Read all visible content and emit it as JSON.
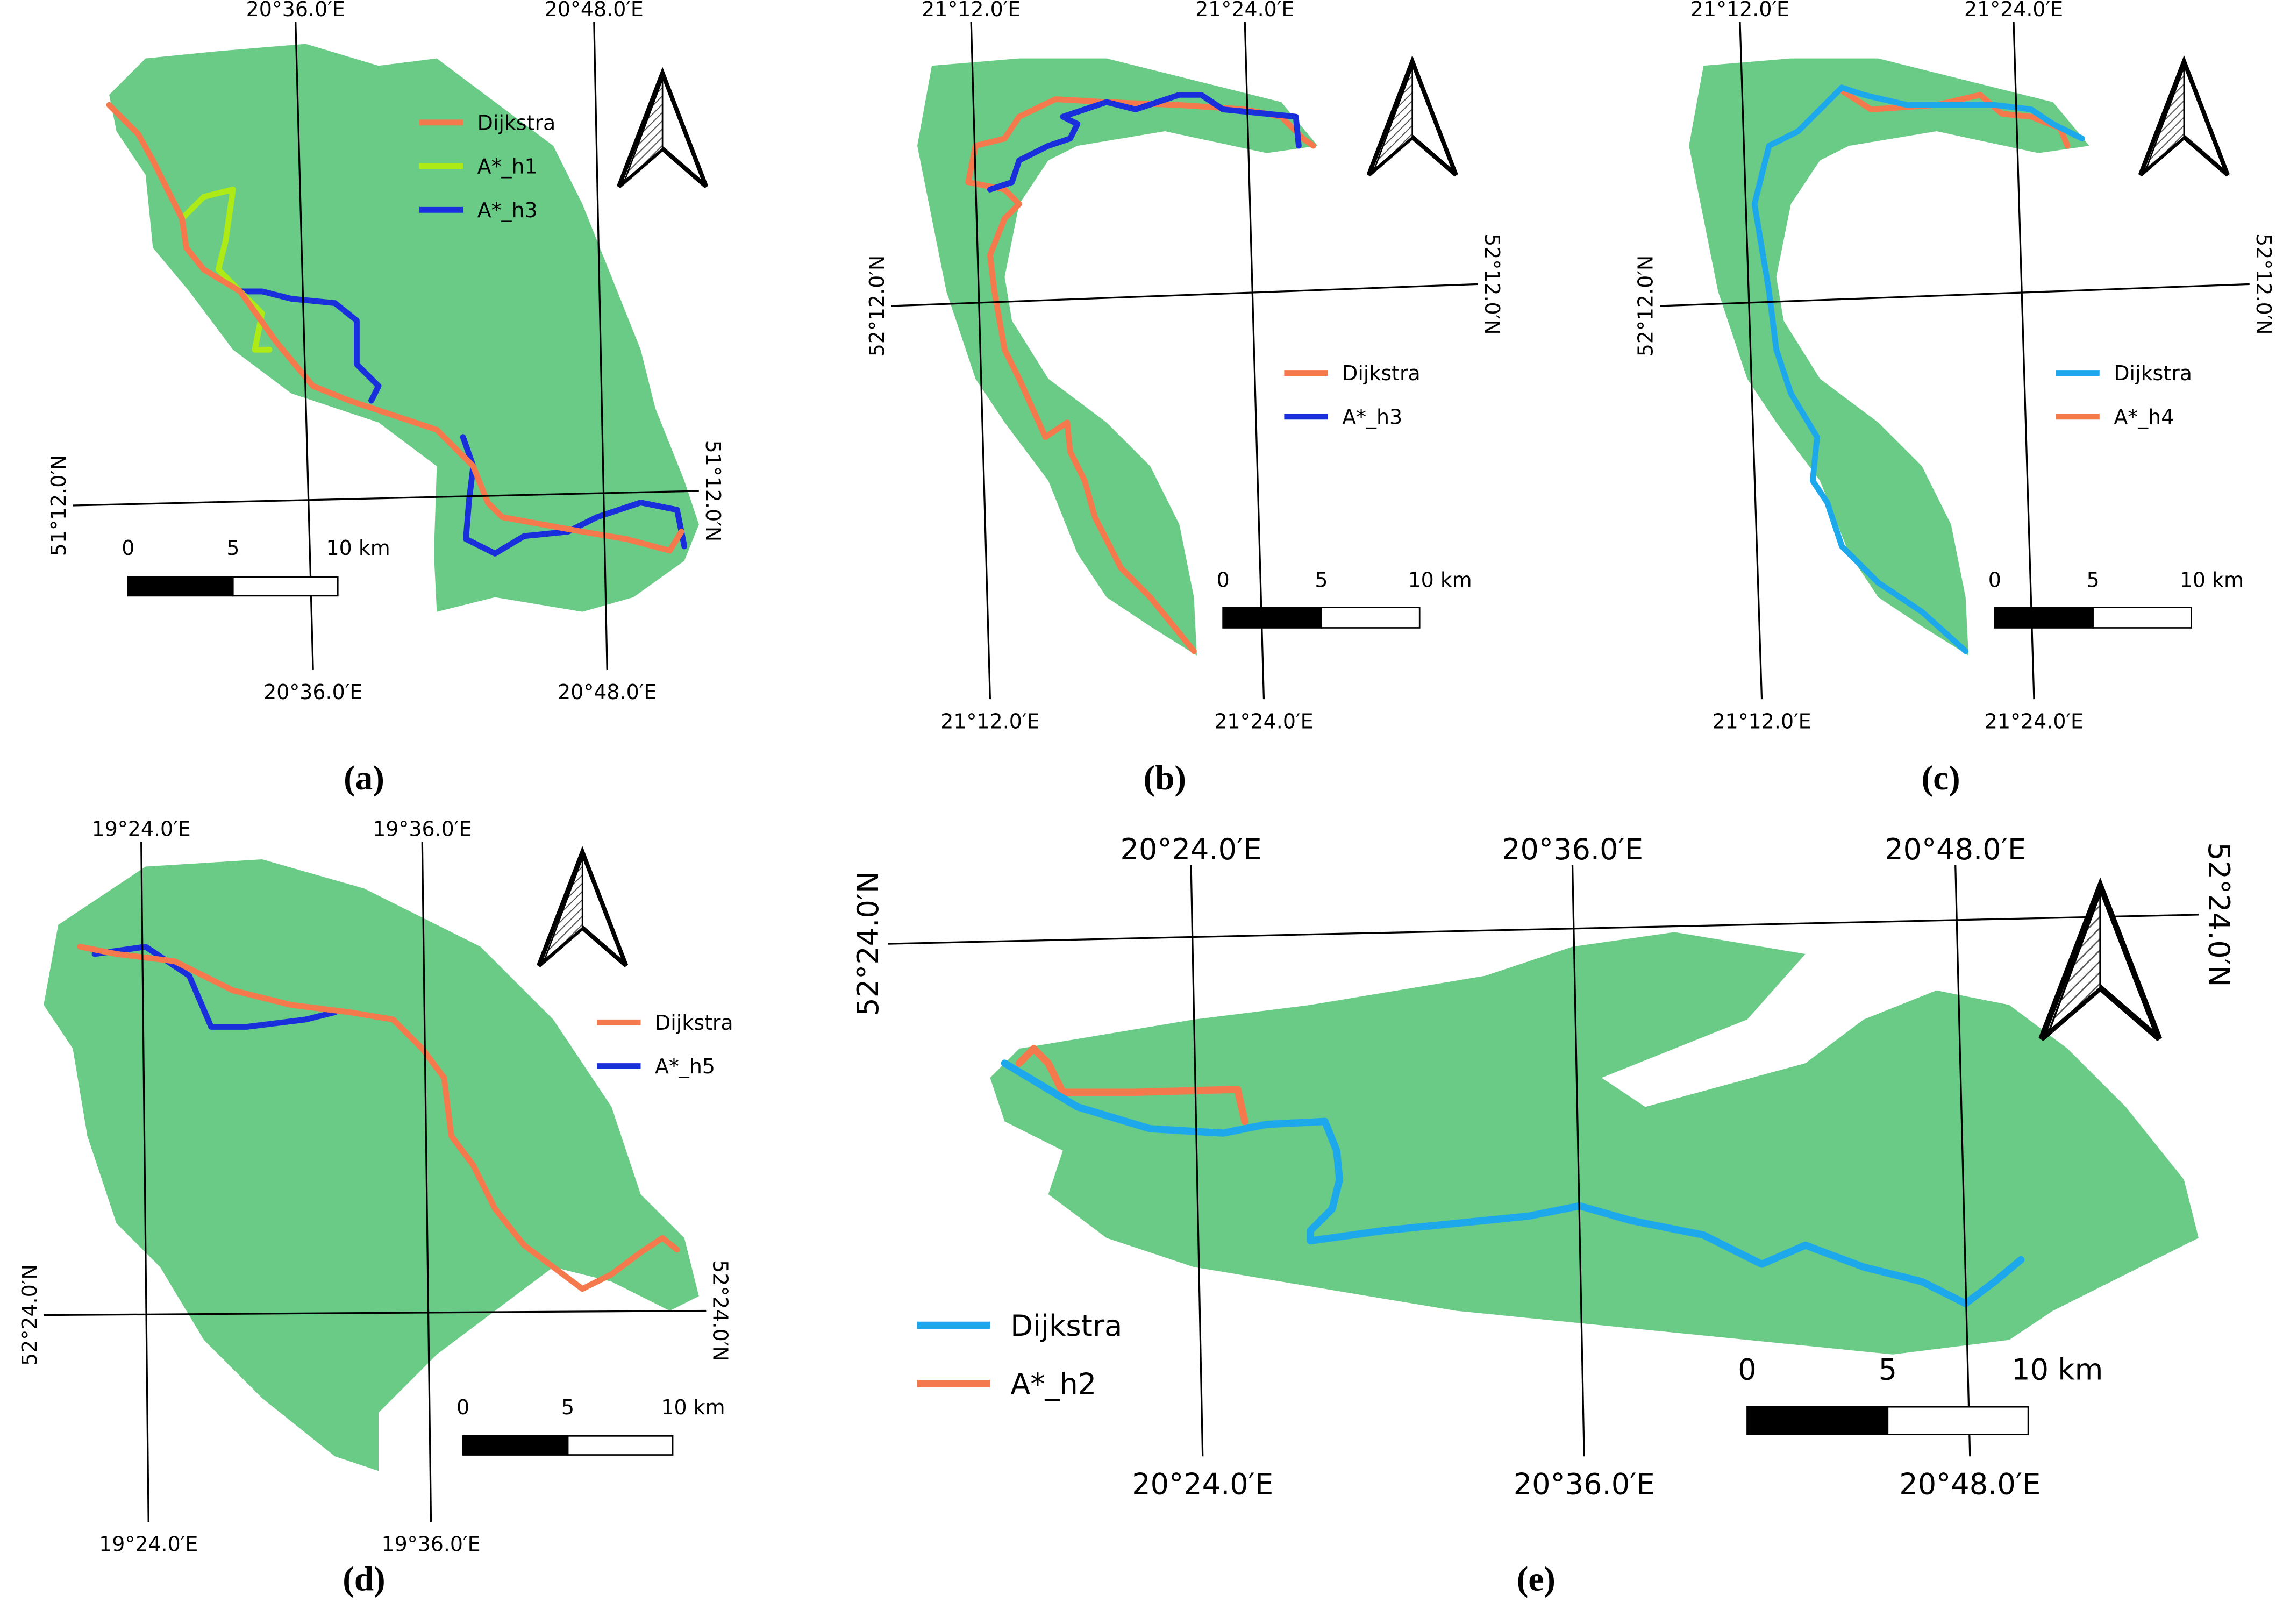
{
  "panels": [
    {
      "caption": "(a)",
      "longitudes": [
        "20°36.0′E",
        "20°48.0′E"
      ],
      "latitudes": [
        "51°12.0′N"
      ],
      "legend": [
        {
          "name": "Dijkstra",
          "color": "#f47a4d"
        },
        {
          "name": "A*_h1",
          "color": "#aeea16"
        },
        {
          "name": "A*_h3",
          "color": "#1a2fdc"
        }
      ],
      "scale_labels": [
        "0",
        "5",
        "10 km"
      ]
    },
    {
      "caption": "(b)",
      "longitudes": [
        "21°12.0′E",
        "21°24.0′E"
      ],
      "latitudes": [
        "52°12.0′N"
      ],
      "legend": [
        {
          "name": "Dijkstra",
          "color": "#f47a4d"
        },
        {
          "name": "A*_h3",
          "color": "#1a2fdc"
        }
      ],
      "scale_labels": [
        "0",
        "5",
        "10 km"
      ]
    },
    {
      "caption": "(c)",
      "longitudes": [
        "21°12.0′E",
        "21°24.0′E"
      ],
      "latitudes": [
        "52°12.0′N"
      ],
      "legend": [
        {
          "name": "Dijkstra",
          "color": "#1ea8ec"
        },
        {
          "name": "A*_h4",
          "color": "#f47a4d"
        }
      ],
      "scale_labels": [
        "0",
        "5",
        "10 km"
      ]
    },
    {
      "caption": "(d)",
      "longitudes": [
        "19°24.0′E",
        "19°36.0′E"
      ],
      "latitudes": [
        "52°24.0′N"
      ],
      "legend": [
        {
          "name": "Dijkstra",
          "color": "#f47a4d"
        },
        {
          "name": "A*_h5",
          "color": "#1a2fdc"
        }
      ],
      "scale_labels": [
        "0",
        "5",
        "10 km"
      ]
    },
    {
      "caption": "(e)",
      "longitudes": [
        "20°24.0′E",
        "20°36.0′E",
        "20°48.0′E"
      ],
      "latitudes": [
        "52°24.0′N"
      ],
      "legend": [
        {
          "name": "Dijkstra",
          "color": "#1ea8ec"
        },
        {
          "name": "A*_h2",
          "color": "#f47a4d"
        }
      ],
      "scale_labels": [
        "0",
        "5",
        "10 km"
      ]
    }
  ]
}
